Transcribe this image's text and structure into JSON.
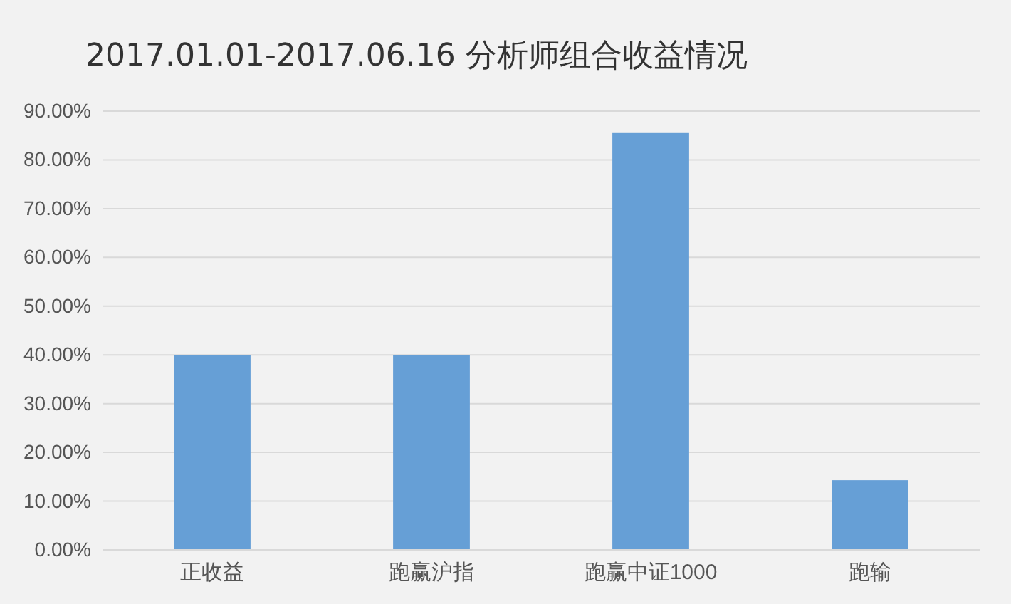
{
  "chart_data": {
    "type": "bar",
    "title": "2017.01.01-2017.06.16 分析师组合收益情况",
    "categories": [
      "正收益",
      "跑赢沪指",
      "跑赢中证1000",
      "跑输"
    ],
    "values": [
      40,
      40,
      85.5,
      14.3
    ],
    "color": "#669fd6",
    "ylim": [
      0,
      90
    ],
    "yticks": [
      {
        "value": 0,
        "label": "0.00%"
      },
      {
        "value": 10,
        "label": "10.00%"
      },
      {
        "value": 20,
        "label": "20.00%"
      },
      {
        "value": 30,
        "label": "30.00%"
      },
      {
        "value": 40,
        "label": "40.00%"
      },
      {
        "value": 50,
        "label": "50.00%"
      },
      {
        "value": 60,
        "label": "60.00%"
      },
      {
        "value": 70,
        "label": "70.00%"
      },
      {
        "value": 80,
        "label": "80.00%"
      },
      {
        "value": 90,
        "label": "90.00%"
      }
    ],
    "grid": "y"
  }
}
